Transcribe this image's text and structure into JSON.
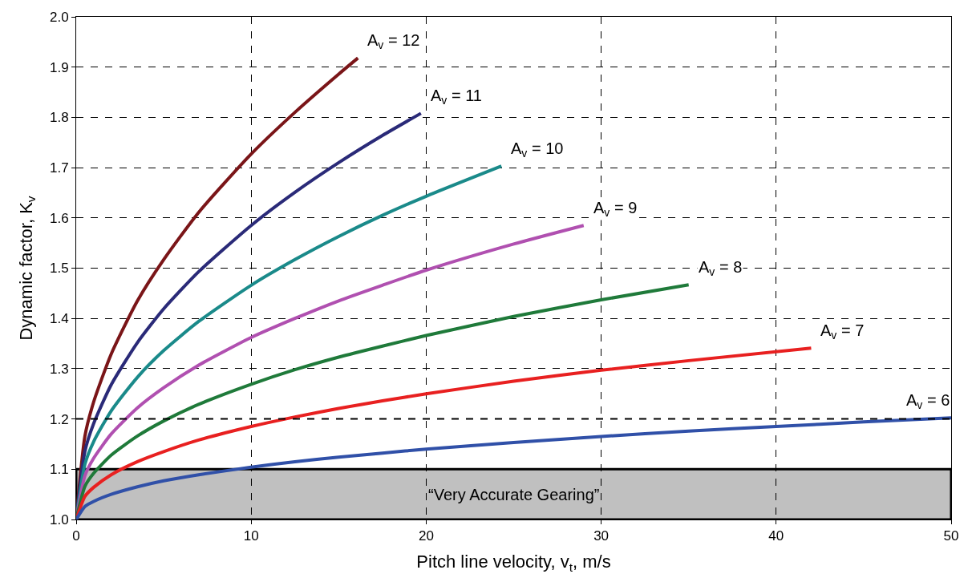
{
  "chart_data": {
    "type": "line",
    "xlabel": "Pitch line velocity, v$_{t}$, m/s",
    "ylabel": "Dynamic factor, K$_{v}$",
    "xlim": [
      0,
      50
    ],
    "xticks": [
      0,
      10,
      20,
      30,
      40,
      50
    ],
    "ylim": [
      1.0,
      2.0
    ],
    "yticks": [
      {
        "value": 1.0,
        "label": "1.0"
      },
      1.1,
      1.2,
      1.3,
      1.4,
      1.5,
      1.6,
      1.7,
      1.8,
      1.9,
      {
        "value": 2.0,
        "label": "2.0"
      }
    ],
    "grid": true,
    "line_style": "solid",
    "marker": "none",
    "bands": [
      {
        "axis": "y",
        "from": 1.0,
        "to": 1.1,
        "label": "“Very Accurate Gearing”",
        "color": "#c0c0c0"
      }
    ],
    "ref_lines": [
      {
        "axis": "y",
        "value": 1.2,
        "color": "#000000",
        "line_style": "dashed"
      }
    ],
    "series": [
      {
        "name": "A$_{v}$ = 12",
        "color": "#7a1518",
        "x": [
          0,
          0.5,
          1,
          2,
          3.5,
          5,
          7,
          10,
          12.5,
          15,
          16.1
        ],
        "values": [
          1.0,
          1.166,
          1.234,
          1.329,
          1.435,
          1.517,
          1.611,
          1.727,
          1.81,
          1.886,
          1.918
        ]
      },
      {
        "name": "A$_{v}$ = 11",
        "color": "#2a2a78",
        "x": [
          0,
          0.5,
          1,
          2,
          3.5,
          5,
          7,
          10,
          12.5,
          15,
          17.5,
          19.7
        ],
        "values": [
          1.0,
          1.136,
          1.191,
          1.268,
          1.352,
          1.419,
          1.493,
          1.585,
          1.651,
          1.71,
          1.764,
          1.808
        ]
      },
      {
        "name": "A$_{v}$ = 10",
        "color": "#1a8a8a",
        "x": [
          0,
          0.5,
          1,
          2,
          3.5,
          5,
          7,
          10,
          12.5,
          15,
          17.5,
          20,
          24.3
        ],
        "values": [
          1.0,
          1.11,
          1.155,
          1.216,
          1.283,
          1.336,
          1.394,
          1.466,
          1.517,
          1.563,
          1.605,
          1.643,
          1.703
        ]
      },
      {
        "name": "A$_{v}$ = 9",
        "color": "#b050b0",
        "x": [
          0,
          0.5,
          1,
          2,
          3.5,
          5,
          7,
          10,
          12.5,
          15,
          17.5,
          20,
          25,
          29
        ],
        "values": [
          1.0,
          1.087,
          1.122,
          1.17,
          1.222,
          1.262,
          1.307,
          1.362,
          1.4,
          1.435,
          1.466,
          1.496,
          1.548,
          1.585
        ]
      },
      {
        "name": "A$_{v}$ = 8",
        "color": "#1f7a3a",
        "x": [
          0,
          0.5,
          1,
          2,
          3.5,
          5,
          7,
          10,
          12.5,
          15,
          17.5,
          20,
          25,
          30,
          35
        ],
        "values": [
          1.0,
          1.066,
          1.092,
          1.128,
          1.166,
          1.196,
          1.229,
          1.269,
          1.298,
          1.323,
          1.345,
          1.366,
          1.404,
          1.437,
          1.467
        ]
      },
      {
        "name": "A$_{v}$ = 7",
        "color": "#e82020",
        "x": [
          0,
          0.5,
          1,
          2,
          3.5,
          5,
          7,
          10,
          12.5,
          15,
          17.5,
          20,
          25,
          30,
          35,
          42
        ],
        "values": [
          1.0,
          1.046,
          1.064,
          1.089,
          1.115,
          1.135,
          1.158,
          1.185,
          1.204,
          1.221,
          1.236,
          1.25,
          1.275,
          1.297,
          1.316,
          1.341
        ]
      },
      {
        "name": "A$_{v}$ = 6",
        "color": "#3050a8",
        "x": [
          0,
          0.5,
          1,
          2,
          3.5,
          5,
          7,
          10,
          12.5,
          15,
          17.5,
          20,
          25,
          30,
          35,
          40,
          45,
          50
        ],
        "values": [
          1.0,
          1.026,
          1.036,
          1.05,
          1.065,
          1.077,
          1.089,
          1.104,
          1.115,
          1.124,
          1.132,
          1.14,
          1.153,
          1.165,
          1.176,
          1.185,
          1.194,
          1.202
        ]
      }
    ]
  }
}
